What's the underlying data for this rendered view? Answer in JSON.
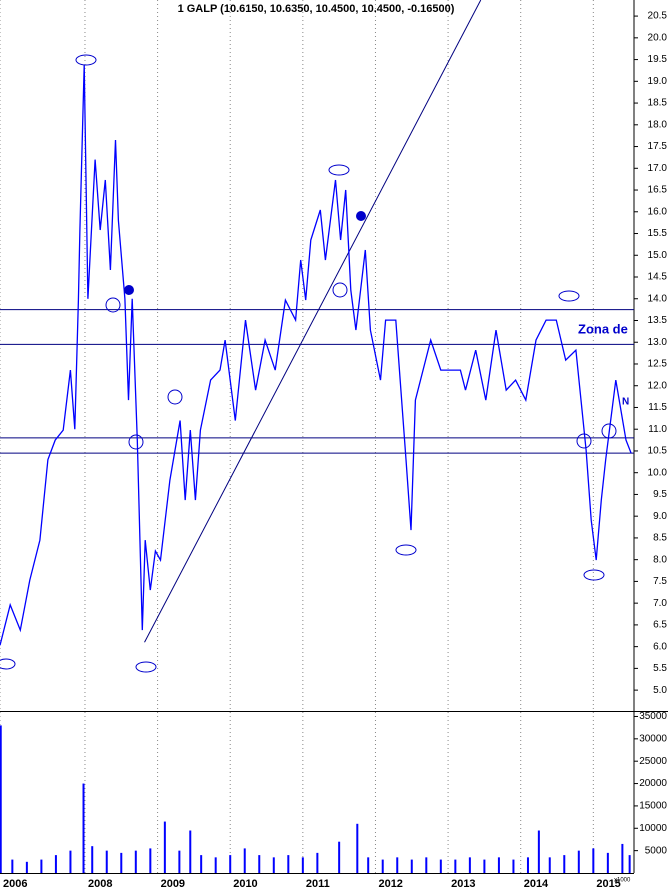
{
  "chart_data": [
    {
      "type": "line",
      "title": "1 GALP (10.6150, 10.6350, 10.4500, 10.4500, -0.16500)",
      "color": "#0000ff",
      "x": [
        2006.83,
        2006.97,
        2007.11,
        2007.24,
        2007.38,
        2007.49,
        2007.59,
        2007.7,
        2007.8,
        2007.86,
        2007.91,
        2007.93,
        2007.99,
        2008.04,
        2008.14,
        2008.21,
        2008.28,
        2008.35,
        2008.42,
        2008.46,
        2008.55,
        2008.6,
        2008.65,
        2008.72,
        2008.79,
        2008.83,
        2008.9,
        2008.97,
        2009.04,
        2009.17,
        2009.31,
        2009.38,
        2009.45,
        2009.52,
        2009.59,
        2009.73,
        2009.86,
        2009.93,
        2010.07,
        2010.21,
        2010.35,
        2010.48,
        2010.62,
        2010.76,
        2010.9,
        2010.97,
        2011.04,
        2011.11,
        2011.24,
        2011.31,
        2011.45,
        2011.52,
        2011.59,
        2011.66,
        2011.73,
        2011.86,
        2011.93,
        2012.07,
        2012.14,
        2012.28,
        2012.35,
        2012.42,
        2012.49,
        2012.55,
        2012.69,
        2012.76,
        2012.9,
        2013.04,
        2013.17,
        2013.24,
        2013.38,
        2013.52,
        2013.66,
        2013.8,
        2013.93,
        2014.07,
        2014.21,
        2014.35,
        2014.49,
        2014.62,
        2014.76,
        2014.83,
        2014.9,
        2014.97,
        2015.04,
        2015.11,
        2015.17,
        2015.31,
        2015.45,
        2015.52
      ],
      "values": [
        6.03,
        6.96,
        6.38,
        7.53,
        8.45,
        10.3,
        10.75,
        10.98,
        12.36,
        11.0,
        13.97,
        15.58,
        19.38,
        14.0,
        17.2,
        15.58,
        16.73,
        14.66,
        17.65,
        15.8,
        14.0,
        11.67,
        14.0,
        10.75,
        6.38,
        8.45,
        7.3,
        8.2,
        7.99,
        9.83,
        11.2,
        9.37,
        10.98,
        9.37,
        10.98,
        12.13,
        12.36,
        13.05,
        11.2,
        13.51,
        11.9,
        13.05,
        12.36,
        13.97,
        13.51,
        14.89,
        13.97,
        15.35,
        16.04,
        14.89,
        16.73,
        15.35,
        16.5,
        14.2,
        13.28,
        15.12,
        13.28,
        12.13,
        13.51,
        13.51,
        11.9,
        10.3,
        8.68,
        11.67,
        12.59,
        13.05,
        12.36,
        12.36,
        12.36,
        11.9,
        12.82,
        11.67,
        13.28,
        11.9,
        12.13,
        11.67,
        13.05,
        13.51,
        13.51,
        12.59,
        12.82,
        11.67,
        10.52,
        8.91,
        7.99,
        9.37,
        10.3,
        12.13,
        10.75,
        10.45
      ],
      "xlim": [
        2006.83,
        2015.56
      ],
      "ylim": [
        4.52,
        20.87
      ],
      "yticks": [
        {
          "value": 5,
          "label": "5.0"
        },
        {
          "value": 5.5,
          "label": "5.5"
        },
        {
          "value": 6,
          "label": "6.0"
        },
        {
          "value": 6.5,
          "label": "6.5"
        },
        {
          "value": 7,
          "label": "7.0"
        },
        {
          "value": 7.5,
          "label": "7.5"
        },
        {
          "value": 8,
          "label": "8.0"
        },
        {
          "value": 8.5,
          "label": "8.5"
        },
        {
          "value": 9,
          "label": "9.0"
        },
        {
          "value": 9.5,
          "label": "9.5"
        },
        {
          "value": 10,
          "label": "10.0"
        },
        {
          "value": 10.5,
          "label": "10.5"
        },
        {
          "value": 11,
          "label": "11.0"
        },
        {
          "value": 11.5,
          "label": "11.5"
        },
        {
          "value": 12,
          "label": "12.0"
        },
        {
          "value": 12.5,
          "label": "12.5"
        },
        {
          "value": 13,
          "label": "13.0"
        },
        {
          "value": 13.5,
          "label": "13.5"
        },
        {
          "value": 14,
          "label": "14.0"
        },
        {
          "value": 14.5,
          "label": "14.5"
        },
        {
          "value": 15,
          "label": "15.0"
        },
        {
          "value": 15.5,
          "label": "15.5"
        },
        {
          "value": 16,
          "label": "16.0"
        },
        {
          "value": 16.5,
          "label": "16.5"
        },
        {
          "value": 17,
          "label": "17.0"
        },
        {
          "value": 17.5,
          "label": "17.5"
        },
        {
          "value": 18,
          "label": "18.0"
        },
        {
          "value": 18.5,
          "label": "18.5"
        },
        {
          "value": 19,
          "label": "19.0"
        },
        {
          "value": 19.5,
          "label": "19.5"
        },
        {
          "value": 20,
          "label": "20.0"
        },
        {
          "value": 20.5,
          "label": "20.5"
        }
      ],
      "hlines": [
        13.75,
        12.95,
        10.8,
        10.45
      ],
      "line_color": "#000080",
      "trendline": {
        "x": [
          2008.82,
          2013.45
        ],
        "y": [
          6.1,
          20.87
        ]
      },
      "annotations": [
        "Zona de",
        "N"
      ]
    },
    {
      "type": "bar",
      "color": "#0000ff",
      "x": [
        2006.84,
        2007.0,
        2007.2,
        2007.4,
        2007.6,
        2007.8,
        2007.98,
        2008.1,
        2008.3,
        2008.5,
        2008.7,
        2008.9,
        2009.1,
        2009.3,
        2009.45,
        2009.6,
        2009.8,
        2010.0,
        2010.2,
        2010.4,
        2010.6,
        2010.8,
        2011.0,
        2011.2,
        2011.5,
        2011.75,
        2011.9,
        2012.1,
        2012.3,
        2012.5,
        2012.7,
        2012.9,
        2013.1,
        2013.3,
        2013.5,
        2013.7,
        2013.9,
        2014.1,
        2014.25,
        2014.4,
        2014.6,
        2014.8,
        2015.0,
        2015.2,
        2015.4,
        2015.5
      ],
      "values": [
        33000,
        3000,
        2500,
        3000,
        4000,
        5000,
        20000,
        6000,
        5000,
        4500,
        5000,
        5500,
        11500,
        5000,
        9500,
        4000,
        3500,
        4000,
        5500,
        4000,
        3500,
        4000,
        3500,
        4500,
        7000,
        11000,
        3500,
        3000,
        3500,
        3000,
        3500,
        3000,
        3000,
        3500,
        3000,
        3500,
        3000,
        3500,
        9500,
        3500,
        4000,
        5000,
        5500,
        4500,
        6500,
        4000
      ],
      "xlim": [
        2006.83,
        2015.56
      ],
      "ylim": [
        0,
        36000
      ],
      "yticks": [
        5000,
        10000,
        15000,
        20000,
        25000,
        30000,
        35000
      ],
      "unit_label": "x1000",
      "xticks": [
        {
          "value": 2006.83,
          "label": "2006"
        },
        2008,
        2009,
        2010,
        2011,
        2012,
        2013,
        2014,
        2015
      ]
    }
  ]
}
